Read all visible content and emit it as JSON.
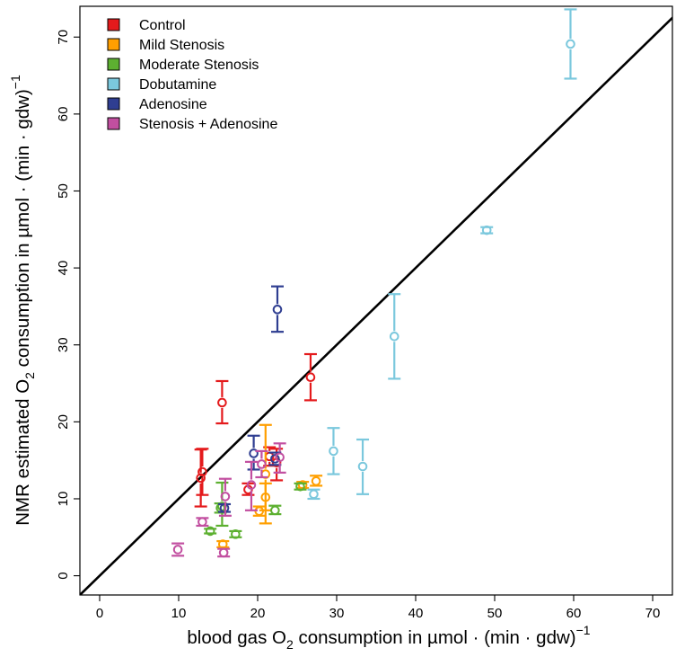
{
  "chart_data": {
    "type": "scatter",
    "xlabel_parts": {
      "a": "blood gas O",
      "sub": "2",
      "b": " consumption in µmol · (min · gdw)",
      "sup": "−1"
    },
    "ylabel_parts": {
      "a": "NMR estimated O",
      "sub": "2",
      "b": " consumption in µmol · (min · gdw)",
      "sup": "−1"
    },
    "xlim": [
      -2.5,
      72.5
    ],
    "ylim": [
      -2.5,
      74
    ],
    "xticks": [
      0,
      10,
      20,
      30,
      40,
      50,
      60,
      70
    ],
    "yticks": [
      0,
      10,
      20,
      30,
      40,
      50,
      60,
      70
    ],
    "xtick_labels": [
      "0",
      "10",
      "20",
      "30",
      "40",
      "50",
      "60",
      "70"
    ],
    "ytick_labels": [
      "0",
      "10",
      "20",
      "30",
      "40",
      "50",
      "60",
      "70"
    ],
    "identity_line": true,
    "grid": false,
    "legend_position": "top-left",
    "series": [
      {
        "name": "Control",
        "color": "#E41A1C",
        "points": [
          {
            "x": 13.0,
            "y": 13.5,
            "lo": 10.5,
            "hi": 16.5
          },
          {
            "x": 12.8,
            "y": 12.7,
            "lo": 9.0,
            "hi": 16.4
          },
          {
            "x": 15.5,
            "y": 22.5,
            "lo": 19.8,
            "hi": 25.3
          },
          {
            "x": 26.7,
            "y": 25.8,
            "lo": 22.8,
            "hi": 28.8
          },
          {
            "x": 21.5,
            "y": 15.5,
            "lo": 14.3,
            "hi": 16.7
          },
          {
            "x": 22.4,
            "y": 14.7,
            "lo": 12.4,
            "hi": 16.5
          },
          {
            "x": 18.8,
            "y": 11.2,
            "lo": 10.5,
            "hi": 12.0
          }
        ]
      },
      {
        "name": "Mild Stenosis",
        "color": "#FF9F00",
        "points": [
          {
            "x": 21.0,
            "y": 13.2,
            "lo": 6.8,
            "hi": 19.6
          },
          {
            "x": 21.0,
            "y": 10.2,
            "lo": 8.5,
            "hi": 12.0
          },
          {
            "x": 20.2,
            "y": 8.4,
            "lo": 7.8,
            "hi": 9.0
          },
          {
            "x": 15.6,
            "y": 4.1,
            "lo": 3.7,
            "hi": 4.5
          },
          {
            "x": 25.7,
            "y": 11.8,
            "lo": 11.4,
            "hi": 12.2
          },
          {
            "x": 27.4,
            "y": 12.3,
            "lo": 11.7,
            "hi": 13.0
          }
        ]
      },
      {
        "name": "Moderate Stenosis",
        "color": "#5DB031",
        "points": [
          {
            "x": 15.5,
            "y": 9.0,
            "lo": 6.5,
            "hi": 12.1
          },
          {
            "x": 15.3,
            "y": 8.8,
            "lo": 8.2,
            "hi": 9.4
          },
          {
            "x": 14.0,
            "y": 5.8,
            "lo": 5.5,
            "hi": 6.1
          },
          {
            "x": 17.2,
            "y": 5.4,
            "lo": 5.0,
            "hi": 5.8
          },
          {
            "x": 22.2,
            "y": 8.5,
            "lo": 8.0,
            "hi": 9.1
          },
          {
            "x": 25.4,
            "y": 11.6,
            "lo": 11.2,
            "hi": 12.0
          }
        ]
      },
      {
        "name": "Dobutamine",
        "color": "#7BC8DD",
        "points": [
          {
            "x": 59.6,
            "y": 69.1,
            "lo": 64.6,
            "hi": 73.6
          },
          {
            "x": 49.0,
            "y": 44.9,
            "lo": 44.5,
            "hi": 45.3
          },
          {
            "x": 37.3,
            "y": 31.1,
            "lo": 25.6,
            "hi": 36.6
          },
          {
            "x": 29.6,
            "y": 16.2,
            "lo": 13.2,
            "hi": 19.2
          },
          {
            "x": 33.3,
            "y": 14.2,
            "lo": 10.6,
            "hi": 17.7
          },
          {
            "x": 27.1,
            "y": 10.6,
            "lo": 10.0,
            "hi": 11.2
          }
        ]
      },
      {
        "name": "Adenosine",
        "color": "#2F3E91",
        "points": [
          {
            "x": 22.5,
            "y": 34.6,
            "lo": 31.7,
            "hi": 37.6
          },
          {
            "x": 19.5,
            "y": 15.9,
            "lo": 13.8,
            "hi": 18.2
          },
          {
            "x": 15.8,
            "y": 8.8,
            "lo": 8.3,
            "hi": 9.3
          },
          {
            "x": 22.2,
            "y": 15.2,
            "lo": 14.4,
            "hi": 16.0
          }
        ]
      },
      {
        "name": "Stenosis + Adenosine",
        "color": "#C24FA0",
        "points": [
          {
            "x": 9.9,
            "y": 3.4,
            "lo": 2.6,
            "hi": 4.2
          },
          {
            "x": 15.7,
            "y": 3.0,
            "lo": 2.5,
            "hi": 3.5
          },
          {
            "x": 13.0,
            "y": 7.0,
            "lo": 6.5,
            "hi": 7.5
          },
          {
            "x": 15.9,
            "y": 10.3,
            "lo": 7.8,
            "hi": 12.6
          },
          {
            "x": 19.2,
            "y": 11.8,
            "lo": 8.5,
            "hi": 14.8
          },
          {
            "x": 20.5,
            "y": 14.5,
            "lo": 12.8,
            "hi": 16.2
          },
          {
            "x": 22.8,
            "y": 15.4,
            "lo": 13.4,
            "hi": 17.2
          }
        ]
      }
    ]
  }
}
